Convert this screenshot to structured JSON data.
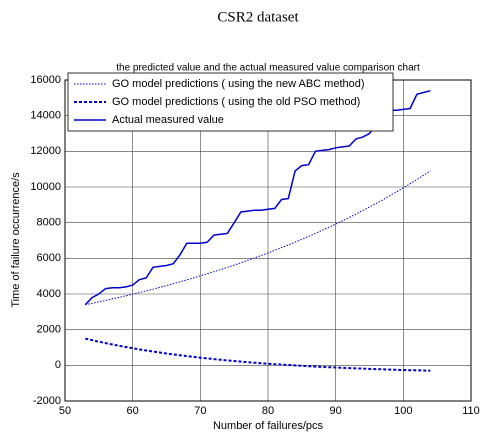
{
  "chart_data": {
    "type": "line",
    "title": "CSR2 dataset",
    "subtitle": "the predicted value and the actual measured value comparison chart",
    "x_label": "Number of failures/pcs",
    "y_label": "Time of failure occurrence/s",
    "x": [
      53,
      54,
      55,
      56,
      57,
      58,
      59,
      60,
      61,
      62,
      63,
      64,
      65,
      66,
      67,
      68,
      69,
      70,
      71,
      72,
      73,
      74,
      75,
      76,
      77,
      78,
      79,
      80,
      81,
      82,
      83,
      84,
      85,
      86,
      87,
      88,
      89,
      90,
      91,
      92,
      93,
      94,
      95,
      96,
      97,
      98,
      99,
      100,
      101,
      102,
      103,
      104
    ],
    "series": [
      {
        "name": "GO model predictions ( using the new ABC method)",
        "color": "#0000cc",
        "linestyle": "dotted",
        "values": [
          3400,
          3480,
          3560,
          3640,
          3730,
          3810,
          3900,
          3990,
          4080,
          4180,
          4270,
          4370,
          4470,
          4580,
          4680,
          4790,
          4900,
          5020,
          5130,
          5250,
          5370,
          5500,
          5620,
          5750,
          5890,
          6020,
          6160,
          6300,
          6450,
          6600,
          6750,
          6910,
          7070,
          7230,
          7400,
          7570,
          7740,
          7920,
          8100,
          8290,
          8480,
          8680,
          8880,
          9080,
          9290,
          9510,
          9730,
          9950,
          10180,
          10420,
          10660,
          10910
        ]
      },
      {
        "name": "GO model predictions ( using the old PSO method)",
        "color": "#0000cc",
        "linestyle": "dashed",
        "values": [
          1500,
          1412,
          1327,
          1247,
          1170,
          1096,
          1026,
          958,
          894,
          833,
          774,
          718,
          664,
          613,
          563,
          517,
          472,
          429,
          388,
          349,
          311,
          275,
          241,
          209,
          177,
          147,
          119,
          92,
          65,
          41,
          17,
          -6,
          -28,
          -49,
          -69,
          -88,
          -106,
          -123,
          -140,
          -156,
          -171,
          -185,
          -199,
          -213,
          -225,
          -237,
          -249,
          -260,
          -271,
          -281,
          -290,
          -300
        ]
      },
      {
        "name": "Actual measured value",
        "color": "#0000cc",
        "linestyle": "solid",
        "values": [
          3400,
          3800,
          4000,
          4300,
          4350,
          4350,
          4400,
          4500,
          4800,
          4900,
          5500,
          5550,
          5600,
          5700,
          6200,
          6850,
          6850,
          6850,
          6900,
          7300,
          7350,
          7400,
          8000,
          8600,
          8650,
          8700,
          8700,
          8750,
          8800,
          9300,
          9350,
          10900,
          11200,
          11250,
          12000,
          12050,
          12100,
          12200,
          12250,
          12300,
          12700,
          12800,
          13000,
          13600,
          14100,
          14300,
          14300,
          14350,
          14400,
          15200,
          15300,
          15400
        ]
      }
    ],
    "xlim": [
      50,
      110
    ],
    "xticks": [
      50,
      60,
      70,
      80,
      90,
      100,
      110
    ],
    "ylim": [
      -2000,
      16000
    ],
    "yticks": [
      -2000,
      0,
      2000,
      4000,
      6000,
      8000,
      10000,
      12000,
      14000,
      16000
    ],
    "grid": true,
    "legend": "upper left"
  }
}
